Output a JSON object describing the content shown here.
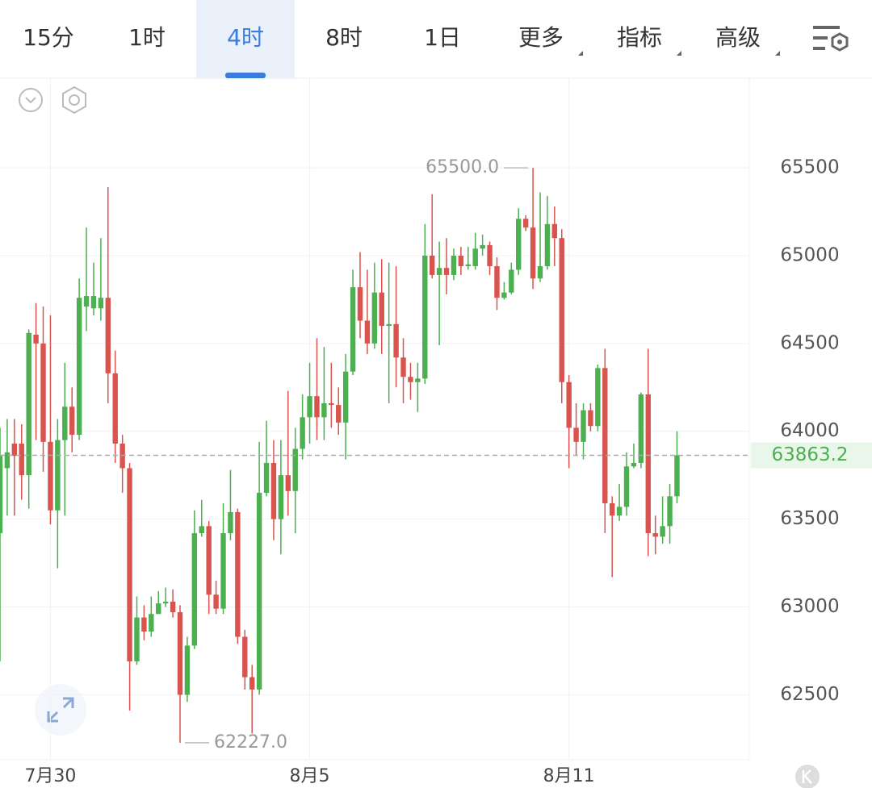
{
  "tabs": [
    "15分",
    "1时",
    "4时",
    "8时",
    "1日",
    "更多",
    "指标",
    "高级"
  ],
  "active_tab": 2,
  "chart_data": {
    "type": "candlestick",
    "up_color": "#4caf50",
    "down_color": "#d9534f",
    "categories": [
      null,
      null,
      null,
      null,
      null,
      null,
      null,
      "7月30",
      null,
      null,
      null,
      null,
      null,
      null,
      null,
      null,
      null,
      null,
      null,
      null,
      null,
      null,
      null,
      null,
      null,
      null,
      null,
      null,
      null,
      null,
      null,
      null,
      null,
      null,
      null,
      null,
      null,
      null,
      null,
      null,
      null,
      null,
      null,
      "8月5",
      null,
      null,
      null,
      null,
      null,
      null,
      null,
      null,
      null,
      null,
      null,
      null,
      null,
      null,
      null,
      null,
      null,
      null,
      null,
      null,
      null,
      null,
      null,
      null,
      null,
      null,
      null,
      null,
      null,
      null,
      null,
      null,
      null,
      null,
      null,
      "8月11",
      null,
      null,
      null,
      null,
      null,
      null,
      null,
      null,
      null,
      null,
      null,
      null,
      null,
      null,
      null
    ],
    "ohlc": [
      [
        63420,
        64020,
        62690,
        63860
      ],
      [
        63790,
        64070,
        63520,
        63880
      ],
      [
        63930,
        64070,
        63520,
        63860
      ],
      [
        63930,
        64040,
        63610,
        63750
      ],
      [
        63750,
        64580,
        63560,
        64560
      ],
      [
        64550,
        64730,
        63950,
        64500
      ],
      [
        64500,
        64710,
        63770,
        63940
      ],
      [
        63940,
        64660,
        63470,
        63550
      ],
      [
        63550,
        64070,
        63220,
        63950
      ],
      [
        63950,
        64390,
        63520,
        64140
      ],
      [
        64140,
        64250,
        63880,
        63980
      ],
      [
        63980,
        64870,
        63950,
        64760
      ],
      [
        64710,
        65160,
        64570,
        64770
      ],
      [
        64700,
        64960,
        64660,
        64770
      ],
      [
        64700,
        65100,
        64630,
        64760
      ],
      [
        64760,
        65390,
        64160,
        64330
      ],
      [
        64330,
        64460,
        63820,
        63930
      ],
      [
        63930,
        63980,
        63650,
        63790
      ],
      [
        63790,
        63820,
        62410,
        62690
      ],
      [
        62690,
        63060,
        62670,
        62940
      ],
      [
        62940,
        63010,
        62810,
        62860
      ],
      [
        62860,
        63060,
        62830,
        62960
      ],
      [
        62960,
        63090,
        62960,
        63020
      ],
      [
        63020,
        63110,
        63000,
        63030
      ],
      [
        63030,
        63100,
        62940,
        62970
      ],
      [
        62970,
        63010,
        62227,
        62500
      ],
      [
        62500,
        62830,
        62460,
        62780
      ],
      [
        62780,
        63550,
        62760,
        63420
      ],
      [
        63420,
        63610,
        63400,
        63460
      ],
      [
        63460,
        63490,
        62960,
        63070
      ],
      [
        63070,
        63150,
        62960,
        62990
      ],
      [
        62990,
        63590,
        62960,
        63420
      ],
      [
        63420,
        63780,
        63380,
        63540
      ],
      [
        63540,
        63560,
        62790,
        62830
      ],
      [
        62830,
        62870,
        62530,
        62600
      ],
      [
        62600,
        62670,
        62280,
        62530
      ],
      [
        62530,
        63940,
        62500,
        63650
      ],
      [
        63650,
        64060,
        63630,
        63820
      ],
      [
        63820,
        63950,
        63380,
        63500
      ],
      [
        63500,
        63950,
        63300,
        63750
      ],
      [
        63750,
        64230,
        63520,
        63660
      ],
      [
        63660,
        64020,
        63420,
        63900
      ],
      [
        63900,
        64210,
        63840,
        64080
      ],
      [
        64080,
        64390,
        63930,
        64200
      ],
      [
        64200,
        64530,
        63950,
        64080
      ],
      [
        64080,
        64480,
        63950,
        64160
      ],
      [
        64160,
        64390,
        64020,
        64150
      ],
      [
        64150,
        64250,
        63980,
        64050
      ],
      [
        64050,
        64440,
        63840,
        64340
      ],
      [
        64340,
        64920,
        64320,
        64820
      ],
      [
        64820,
        65020,
        64530,
        64630
      ],
      [
        64630,
        64920,
        64440,
        64500
      ],
      [
        64500,
        64960,
        64470,
        64790
      ],
      [
        64790,
        64980,
        64440,
        64600
      ],
      [
        64600,
        64960,
        64160,
        64610
      ],
      [
        64610,
        64940,
        64250,
        64420
      ],
      [
        64420,
        64530,
        64160,
        64310
      ],
      [
        64310,
        64390,
        64180,
        64280
      ],
      [
        64280,
        64390,
        64110,
        64300
      ],
      [
        64300,
        65180,
        64270,
        65000
      ],
      [
        65000,
        65350,
        64870,
        64890
      ],
      [
        64890,
        65080,
        64490,
        64930
      ],
      [
        64930,
        65100,
        64780,
        64890
      ],
      [
        64890,
        65040,
        64860,
        65000
      ],
      [
        65000,
        65050,
        64890,
        64940
      ],
      [
        64940,
        65050,
        64920,
        64950
      ],
      [
        64940,
        65130,
        64920,
        65040
      ],
      [
        65040,
        65120,
        65000,
        65060
      ],
      [
        65060,
        65080,
        64890,
        64940
      ],
      [
        64940,
        64990,
        64690,
        64760
      ],
      [
        64760,
        64850,
        64750,
        64790
      ],
      [
        64790,
        64960,
        64780,
        64920
      ],
      [
        64920,
        65270,
        64890,
        65210
      ],
      [
        65210,
        65230,
        65140,
        65160
      ],
      [
        65160,
        65500,
        64810,
        64870
      ],
      [
        64870,
        65360,
        64850,
        64940
      ],
      [
        64940,
        65340,
        64920,
        65180
      ],
      [
        65180,
        65280,
        64940,
        65100
      ],
      [
        65100,
        65150,
        64160,
        64280
      ],
      [
        64280,
        64320,
        63790,
        64020
      ],
      [
        64020,
        64160,
        63860,
        63940
      ],
      [
        63940,
        64160,
        63840,
        64120
      ],
      [
        64120,
        64160,
        64000,
        64030
      ],
      [
        64030,
        64380,
        64000,
        64360
      ],
      [
        64360,
        64470,
        63420,
        63590
      ],
      [
        63590,
        63630,
        63170,
        63520
      ],
      [
        63520,
        63700,
        63490,
        63570
      ],
      [
        63570,
        63880,
        63520,
        63800
      ],
      [
        63800,
        63930,
        63790,
        63820
      ],
      [
        63820,
        64220,
        63790,
        64210
      ],
      [
        64210,
        64470,
        63290,
        63420
      ],
      [
        63420,
        63520,
        63300,
        63400
      ],
      [
        63400,
        63630,
        63360,
        63460
      ],
      [
        63460,
        63700,
        63360,
        63630
      ],
      [
        63630,
        64000,
        63590,
        63863.2
      ]
    ],
    "ylim": [
      62130,
      66010
    ],
    "yticks": [
      62500,
      63000,
      63500,
      64000,
      64500,
      65000,
      65500
    ],
    "grid": true,
    "current_price": 63863.2,
    "annotations": [
      {
        "value": 65500,
        "label": "65500.0",
        "index": 74,
        "side": "left"
      },
      {
        "value": 62227,
        "label": "62227.0",
        "index": 25,
        "side": "right"
      }
    ]
  }
}
